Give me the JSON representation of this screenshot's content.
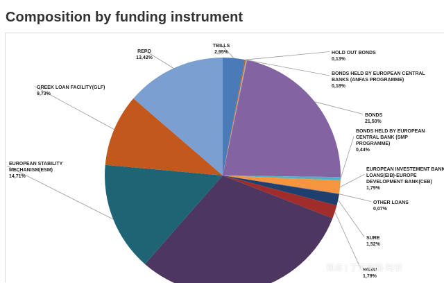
{
  "page": {
    "title": "Composition by funding instrument",
    "watermark": "观点 | 丁克家园-知识"
  },
  "chart_data": {
    "type": "pie",
    "title": "",
    "unit": "%",
    "start": "12 o'clock",
    "direction": "clockwise",
    "slices": [
      {
        "label": "TBILLS",
        "value_text": "2,95%",
        "value": 2.95,
        "color": "#4a7ab8"
      },
      {
        "label": "HOLD OUT BONDS",
        "value_text": "0,13%",
        "value": 0.13,
        "color": "#c05a1a"
      },
      {
        "label": "BONDS HELD BY EUROPEAN CENTRAL BANKS (ANFAS PROGRAMME)",
        "value_text": "0,18%",
        "value": 0.18,
        "color": "#a7a7a7"
      },
      {
        "label": "BONDS",
        "value_text": "21,50%",
        "value": 21.5,
        "color": "#8463a3"
      },
      {
        "label": "BONDS HELD BY EUROPEAN CENTRAL BANK (SMP PROGRAMME)",
        "value_text": "0,44%",
        "value": 0.44,
        "color": "#4fb0c6"
      },
      {
        "label": "EUROPEAN INVESTEMENT BANK LOANS(EIB)-EUROPE DEVELOPMENT BANK(CEB)",
        "value_text": "1,79%",
        "value": 1.79,
        "color": "#f5953f"
      },
      {
        "label": "OTHER LOANS",
        "value_text": "0,07%",
        "value": 0.07,
        "color": "#3a5a9c"
      },
      {
        "label": "SURE",
        "value_text": "1,52%",
        "value": 1.52,
        "color": "#1f3f6e"
      },
      {
        "label": "NGEU",
        "value_text": "1,79%",
        "value": 1.79,
        "color": "#a02d2b"
      },
      {
        "label": "",
        "value_text": "",
        "value": 30.0,
        "color": "#4d3660"
      },
      {
        "label": "EUROPEAN STABILITY MECHANISM(ESM)",
        "value_text": "14,71%",
        "value": 14.71,
        "color": "#1e6474"
      },
      {
        "label": "GREEK LOAN FACILITY(GLF)",
        "value_text": "9,73%",
        "value": 9.73,
        "color": "#c2581c"
      },
      {
        "label": "REPO",
        "value_text": "13,42%",
        "value": 13.42,
        "color": "#7b9fd0"
      }
    ]
  }
}
